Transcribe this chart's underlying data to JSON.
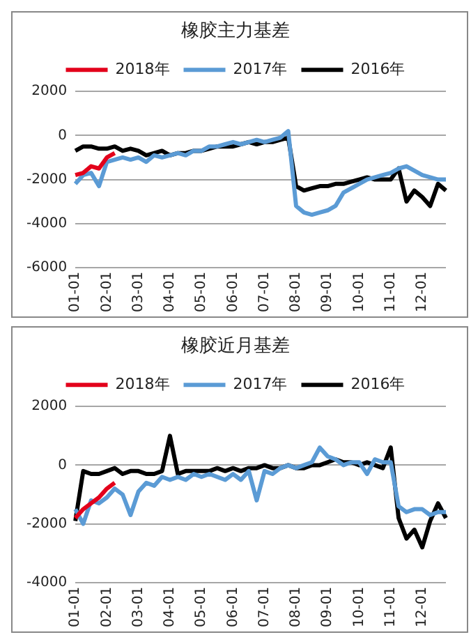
{
  "chart_data": [
    {
      "type": "line",
      "title": "橡胶主力基差",
      "categories": [
        "01-01",
        null,
        null,
        null,
        "02-01",
        null,
        null,
        null,
        "03-01",
        null,
        null,
        null,
        "04-01",
        null,
        null,
        null,
        "05-01",
        null,
        null,
        null,
        "06-01",
        null,
        null,
        null,
        "07-01",
        null,
        null,
        null,
        "08-01",
        null,
        null,
        null,
        "09-01",
        null,
        null,
        null,
        "10-01",
        null,
        null,
        null,
        "11-01",
        null,
        null,
        null,
        "12-01",
        null,
        null,
        null
      ],
      "ylim": [
        -6000,
        2000
      ],
      "yticks": [
        -6000,
        -4000,
        -2000,
        0,
        2000
      ],
      "grid": "y",
      "legend": "top",
      "marker": "none",
      "line_style": "solid",
      "series": [
        {
          "name": "2018年",
          "color": "#e3001b",
          "values": [
            -1800,
            -1700,
            -1400,
            -1500,
            -1000,
            -800,
            null,
            null,
            null,
            null,
            null,
            null,
            null,
            null,
            null,
            null,
            null,
            null,
            null,
            null,
            null,
            null,
            null,
            null,
            null,
            null,
            null,
            null,
            null,
            null,
            null,
            null,
            null,
            null,
            null,
            null,
            null,
            null,
            null,
            null,
            null,
            null,
            null,
            null,
            null,
            null,
            null,
            null
          ]
        },
        {
          "name": "2017年",
          "color": "#5b9bd5",
          "values": [
            -2200,
            -1800,
            -1700,
            -2300,
            -1200,
            -1100,
            -1000,
            -1100,
            -1000,
            -1200,
            -900,
            -1000,
            -900,
            -800,
            -900,
            -700,
            -700,
            -500,
            -500,
            -400,
            -300,
            -400,
            -300,
            -200,
            -300,
            -200,
            -100,
            200,
            -3200,
            -3500,
            -3600,
            -3500,
            -3400,
            -3200,
            -2600,
            -2400,
            -2200,
            -2000,
            -1900,
            -1800,
            -1700,
            -1500,
            -1400,
            -1600,
            -1800,
            -1900,
            -2000,
            -2000
          ]
        },
        {
          "name": "2016年",
          "color": "#000000",
          "values": [
            -700,
            -500,
            -500,
            -600,
            -600,
            -500,
            -700,
            -600,
            -700,
            -900,
            -800,
            -700,
            -900,
            -800,
            -800,
            -700,
            -700,
            -600,
            -500,
            -500,
            -500,
            -400,
            -300,
            -400,
            -300,
            -300,
            -200,
            -100,
            -2300,
            -2500,
            -2400,
            -2300,
            -2300,
            -2200,
            -2200,
            -2100,
            -2000,
            -1900,
            -2000,
            -2000,
            -2000,
            -1500,
            -3000,
            -2500,
            -2800,
            -3200,
            -2200,
            -2500
          ]
        }
      ]
    },
    {
      "type": "line",
      "title": "橡胶近月基差",
      "categories": [
        "01-01",
        null,
        null,
        null,
        "02-01",
        null,
        null,
        null,
        "03-01",
        null,
        null,
        null,
        "04-01",
        null,
        null,
        null,
        "05-01",
        null,
        null,
        null,
        "06-01",
        null,
        null,
        null,
        "07-01",
        null,
        null,
        null,
        "08-01",
        null,
        null,
        null,
        "09-01",
        null,
        null,
        null,
        "10-01",
        null,
        null,
        null,
        "11-01",
        null,
        null,
        null,
        "12-01",
        null,
        null,
        null
      ],
      "ylim": [
        -4000,
        2000
      ],
      "yticks": [
        -4000,
        -2000,
        0,
        2000
      ],
      "grid": "y",
      "legend": "top",
      "marker": "none",
      "line_style": "solid",
      "series": [
        {
          "name": "2018年",
          "color": "#e3001b",
          "values": [
            -1800,
            -1500,
            -1300,
            -1100,
            -800,
            -600,
            null,
            null,
            null,
            null,
            null,
            null,
            null,
            null,
            null,
            null,
            null,
            null,
            null,
            null,
            null,
            null,
            null,
            null,
            null,
            null,
            null,
            null,
            null,
            null,
            null,
            null,
            null,
            null,
            null,
            null,
            null,
            null,
            null,
            null,
            null,
            null,
            null,
            null,
            null,
            null,
            null,
            null
          ]
        },
        {
          "name": "2017年",
          "color": "#5b9bd5",
          "values": [
            -1500,
            -2000,
            -1200,
            -1300,
            -1100,
            -800,
            -1000,
            -1700,
            -900,
            -600,
            -700,
            -400,
            -500,
            -400,
            -500,
            -300,
            -400,
            -300,
            -400,
            -500,
            -300,
            -500,
            -200,
            -1200,
            -200,
            -300,
            -100,
            0,
            -100,
            0,
            100,
            600,
            300,
            200,
            0,
            100,
            100,
            -300,
            200,
            100,
            100,
            -1400,
            -1600,
            -1500,
            -1500,
            -1700,
            -1600,
            -1600
          ]
        },
        {
          "name": "2016年",
          "color": "#000000",
          "values": [
            -1900,
            -200,
            -300,
            -300,
            -200,
            -100,
            -300,
            -200,
            -200,
            -300,
            -300,
            -200,
            1000,
            -300,
            -200,
            -200,
            -200,
            -200,
            -100,
            -200,
            -100,
            -200,
            -100,
            -100,
            0,
            -100,
            -100,
            0,
            -100,
            -100,
            0,
            0,
            100,
            200,
            100,
            100,
            0,
            100,
            0,
            -100,
            600,
            -1800,
            -2500,
            -2200,
            -2800,
            -1900,
            -1300,
            -1800
          ]
        }
      ]
    }
  ]
}
